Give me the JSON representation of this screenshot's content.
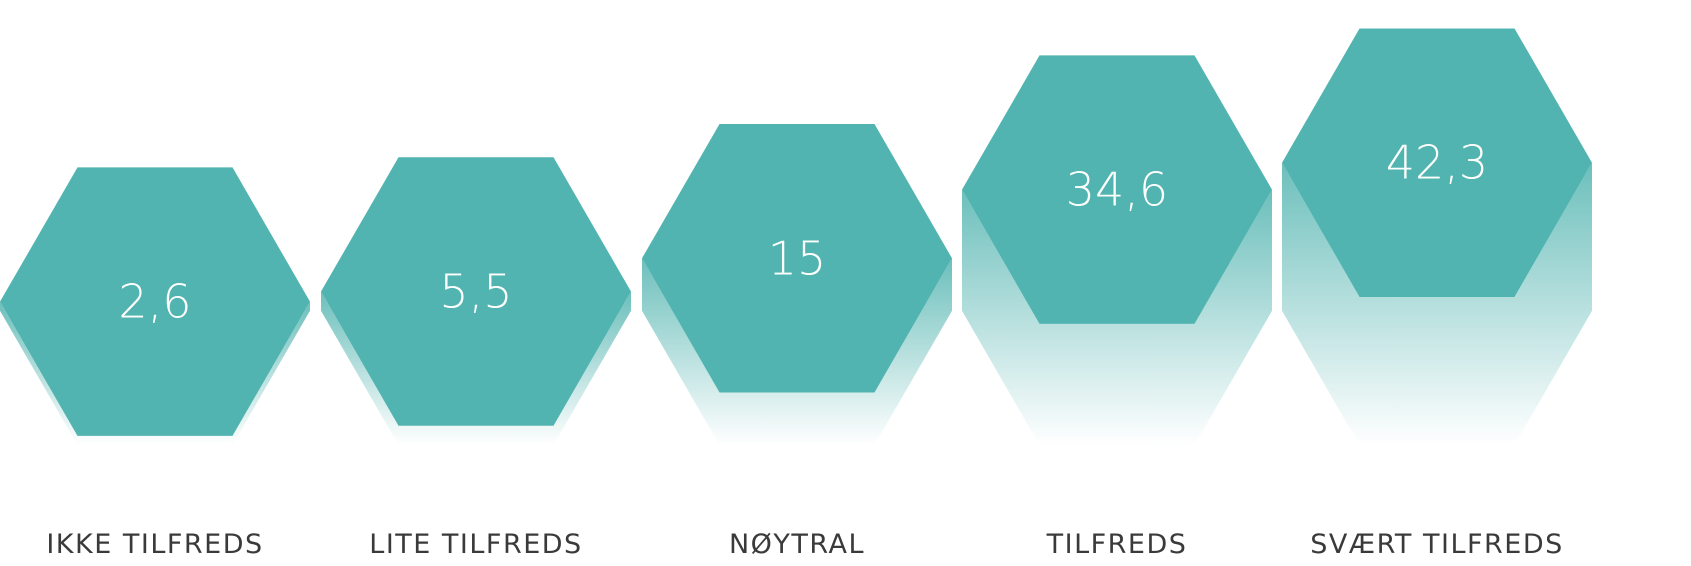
{
  "chart_data": {
    "type": "bar",
    "categories": [
      "IKKE TILFREDS",
      "LITE TILFREDS",
      "NØYTRAL",
      "TILFREDS",
      "SVÆRT TILFREDS"
    ],
    "values": [
      2.6,
      5.5,
      15,
      34.6,
      42.3
    ],
    "value_labels": [
      "2,6",
      "5,5",
      "15",
      "34,6",
      "42,3"
    ],
    "marker": "hexagon",
    "color": "#52b4b0",
    "label_color": "#3a3a3a",
    "value_text_color": "#ffffff",
    "grid": false,
    "legend": "none"
  }
}
